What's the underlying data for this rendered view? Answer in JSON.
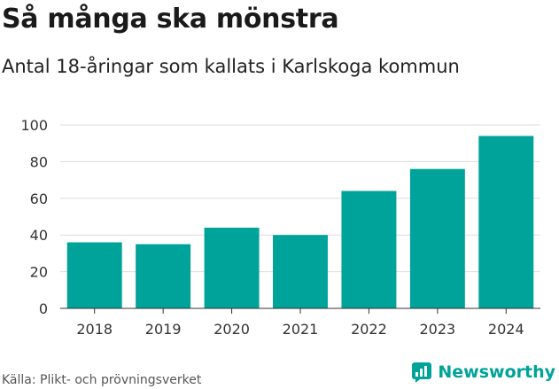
{
  "chart_data": {
    "type": "bar",
    "title": "Så många ska mönstra",
    "subtitle": "Antal 18-åringar som kallats i Karlskoga kommun",
    "categories": [
      "2018",
      "2019",
      "2020",
      "2021",
      "2022",
      "2023",
      "2024"
    ],
    "values": [
      36,
      35,
      44,
      40,
      64,
      76,
      94
    ],
    "ylim": [
      0,
      100
    ],
    "yticks": [
      0,
      20,
      40,
      60,
      80,
      100
    ],
    "xlabel": "",
    "ylabel": "",
    "grid": true,
    "bar_color": "#00a399"
  },
  "source": "Källa: Plikt- och prövningsverket",
  "brand": {
    "name": "Newsworthy",
    "color": "#00a399"
  }
}
